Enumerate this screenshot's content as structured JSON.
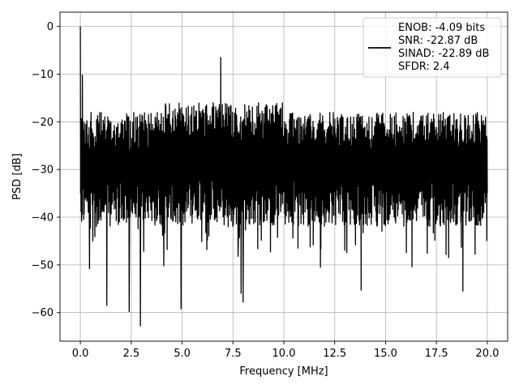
{
  "chart_data": {
    "type": "line",
    "title": "",
    "xlabel": "Frequency [MHz]",
    "ylabel": "PSD [dB]",
    "xlim": [
      -1.0,
      21.0
    ],
    "ylim": [
      -66.0,
      3.0
    ],
    "x_ticks": [
      0.0,
      2.5,
      5.0,
      7.5,
      10.0,
      12.5,
      15.0,
      17.5,
      20.0
    ],
    "x_tick_labels": [
      "0.0",
      "2.5",
      "5.0",
      "7.5",
      "10.0",
      "12.5",
      "15.0",
      "17.5",
      "20.0"
    ],
    "y_ticks": [
      0,
      -10,
      -20,
      -30,
      -40,
      -50,
      -60
    ],
    "y_tick_labels": [
      "0",
      "−10",
      "−20",
      "−30",
      "−40",
      "−50",
      "−60"
    ],
    "grid": true,
    "legend_position": "top-right",
    "line_color": "#000000",
    "legend": {
      "lines": [
        "ENOB: -4.09 bits",
        "SNR: -22.87 dB",
        "SINAD: -22.89 dB",
        "SFDR: 2.4"
      ]
    },
    "series": [
      {
        "noise_floor_db": -27,
        "notable_points": [
          {
            "x": 0.0,
            "y": 0.0
          },
          {
            "x": 0.1,
            "y": -10.2
          },
          {
            "x": 0.45,
            "y": -50.8
          },
          {
            "x": 1.3,
            "y": -58.5
          },
          {
            "x": 2.4,
            "y": -59.8
          },
          {
            "x": 2.95,
            "y": -62.8
          },
          {
            "x": 4.1,
            "y": -50.2
          },
          {
            "x": 4.95,
            "y": -59.2
          },
          {
            "x": 6.9,
            "y": -6.5
          },
          {
            "x": 7.9,
            "y": -56.0
          },
          {
            "x": 8.0,
            "y": -57.8
          },
          {
            "x": 7.75,
            "y": -48.2
          },
          {
            "x": 11.8,
            "y": -50.5
          },
          {
            "x": 13.8,
            "y": -55.3
          },
          {
            "x": 16.3,
            "y": -50.4
          },
          {
            "x": 18.1,
            "y": -48.5
          },
          {
            "x": 18.8,
            "y": -55.5
          },
          {
            "x": 20.0,
            "y": -35.0
          }
        ]
      }
    ]
  }
}
